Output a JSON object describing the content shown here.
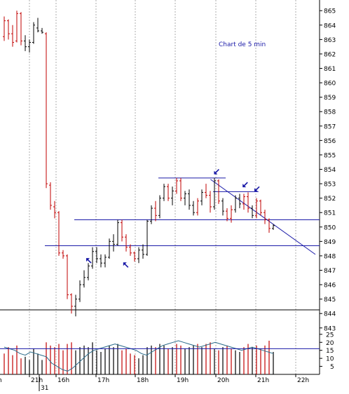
{
  "chart_data": {
    "type": "candlestick-with-volume",
    "annotation": "Chart de 5 min",
    "price_axis": {
      "min": 842,
      "max": 866,
      "ticks": [
        843,
        844,
        845,
        846,
        847,
        848,
        849,
        850,
        851,
        852,
        853,
        854,
        855,
        856,
        857,
        858,
        859,
        860,
        861,
        862,
        863,
        864,
        865
      ]
    },
    "volume_axis": {
      "min": 0,
      "max": 28,
      "ticks": [
        5,
        10,
        15,
        20,
        25
      ]
    },
    "time_labels": [
      "h",
      "21h",
      "16h",
      "17h",
      "18h",
      "19h",
      "20h",
      "21h",
      "22h"
    ],
    "date_label": "31",
    "bars": [
      {
        "t": 0.0,
        "o": 863.2,
        "h": 864.6,
        "l": 862.9,
        "c": 864.3,
        "color": "red",
        "vol": 13
      },
      {
        "t": 0.25,
        "o": 864.3,
        "h": 864.4,
        "l": 863.0,
        "c": 863.4,
        "color": "red",
        "vol": 17
      },
      {
        "t": 0.5,
        "o": 863.4,
        "h": 864.0,
        "l": 862.5,
        "c": 862.8,
        "color": "red",
        "vol": 12
      },
      {
        "t": 0.75,
        "o": 862.9,
        "h": 865.0,
        "l": 862.8,
        "c": 864.8,
        "color": "red",
        "vol": 18
      },
      {
        "t": 1.0,
        "o": 864.8,
        "h": 864.9,
        "l": 862.6,
        "c": 862.9,
        "color": "red",
        "vol": 10
      },
      {
        "t": 1.25,
        "o": 862.9,
        "h": 863.3,
        "l": 862.2,
        "c": 862.5,
        "color": "black",
        "vol": 11
      },
      {
        "t": 1.5,
        "o": 862.5,
        "h": 863.0,
        "l": 862.1,
        "c": 862.8,
        "color": "black",
        "vol": 9
      },
      {
        "t": 1.75,
        "o": 862.8,
        "h": 864.2,
        "l": 862.7,
        "c": 864.0,
        "color": "black",
        "vol": 16
      },
      {
        "t": 2.0,
        "o": 863.8,
        "h": 864.5,
        "l": 863.5,
        "c": 863.6,
        "color": "black",
        "vol": 13
      },
      {
        "t": 2.25,
        "o": 863.6,
        "h": 863.8,
        "l": 863.4,
        "c": 863.5,
        "color": "black",
        "vol": 9
      },
      {
        "t": 2.5,
        "o": 863.4,
        "h": 863.5,
        "l": 852.7,
        "c": 853.0,
        "color": "red",
        "vol": 20
      },
      {
        "t": 2.75,
        "o": 852.9,
        "h": 853.1,
        "l": 851.2,
        "c": 851.5,
        "color": "red",
        "vol": 18
      },
      {
        "t": 3.0,
        "o": 851.4,
        "h": 851.8,
        "l": 850.6,
        "c": 851.0,
        "color": "red",
        "vol": 17
      },
      {
        "t": 3.25,
        "o": 851.0,
        "h": 851.1,
        "l": 848.0,
        "c": 848.2,
        "color": "red",
        "vol": 19
      },
      {
        "t": 3.5,
        "o": 848.2,
        "h": 848.4,
        "l": 847.8,
        "c": 848.0,
        "color": "red",
        "vol": 15
      },
      {
        "t": 3.75,
        "o": 848.0,
        "h": 848.1,
        "l": 845.0,
        "c": 845.3,
        "color": "red",
        "vol": 19
      },
      {
        "t": 4.0,
        "o": 845.3,
        "h": 845.4,
        "l": 844.0,
        "c": 844.5,
        "color": "red",
        "vol": 20
      },
      {
        "t": 4.25,
        "o": 844.5,
        "h": 845.3,
        "l": 843.8,
        "c": 845.0,
        "color": "black",
        "vol": 15
      },
      {
        "t": 4.5,
        "o": 845.0,
        "h": 846.3,
        "l": 844.8,
        "c": 846.0,
        "color": "black",
        "vol": 17
      },
      {
        "t": 4.75,
        "o": 846.0,
        "h": 847.0,
        "l": 845.8,
        "c": 846.5,
        "color": "black",
        "vol": 18
      },
      {
        "t": 5.0,
        "o": 846.5,
        "h": 847.5,
        "l": 846.3,
        "c": 847.3,
        "color": "black",
        "vol": 17
      },
      {
        "t": 5.25,
        "o": 847.3,
        "h": 848.6,
        "l": 847.1,
        "c": 848.3,
        "color": "black",
        "vol": 20
      },
      {
        "t": 5.5,
        "o": 848.3,
        "h": 848.6,
        "l": 847.5,
        "c": 847.8,
        "color": "black",
        "vol": 15
      },
      {
        "t": 5.75,
        "o": 847.8,
        "h": 848.1,
        "l": 847.2,
        "c": 847.5,
        "color": "black",
        "vol": 14
      },
      {
        "t": 6.0,
        "o": 847.5,
        "h": 848.1,
        "l": 847.2,
        "c": 847.9,
        "color": "black",
        "vol": 16
      },
      {
        "t": 6.25,
        "o": 847.9,
        "h": 849.2,
        "l": 847.8,
        "c": 849.0,
        "color": "black",
        "vol": 18
      },
      {
        "t": 6.5,
        "o": 849.0,
        "h": 849.5,
        "l": 848.3,
        "c": 848.8,
        "color": "black",
        "vol": 17
      },
      {
        "t": 6.75,
        "o": 848.8,
        "h": 850.5,
        "l": 848.7,
        "c": 850.3,
        "color": "black",
        "vol": 19
      },
      {
        "t": 7.0,
        "o": 850.3,
        "h": 850.5,
        "l": 849.0,
        "c": 849.3,
        "color": "red",
        "vol": 15
      },
      {
        "t": 7.25,
        "o": 849.3,
        "h": 849.5,
        "l": 848.3,
        "c": 848.6,
        "color": "red",
        "vol": 16
      },
      {
        "t": 7.5,
        "o": 848.6,
        "h": 848.8,
        "l": 848.0,
        "c": 848.2,
        "color": "red",
        "vol": 13
      },
      {
        "t": 7.75,
        "o": 848.2,
        "h": 848.3,
        "l": 847.6,
        "c": 847.8,
        "color": "red",
        "vol": 12
      },
      {
        "t": 8.0,
        "o": 847.8,
        "h": 848.6,
        "l": 847.5,
        "c": 848.4,
        "color": "black",
        "vol": 10
      },
      {
        "t": 8.25,
        "o": 848.4,
        "h": 848.8,
        "l": 847.8,
        "c": 848.1,
        "color": "black",
        "vol": 12
      },
      {
        "t": 8.5,
        "o": 848.1,
        "h": 850.5,
        "l": 848.0,
        "c": 850.4,
        "color": "black",
        "vol": 17
      },
      {
        "t": 8.75,
        "o": 850.4,
        "h": 851.5,
        "l": 850.2,
        "c": 851.3,
        "color": "black",
        "vol": 18
      },
      {
        "t": 9.0,
        "o": 851.3,
        "h": 851.8,
        "l": 850.4,
        "c": 850.8,
        "color": "red",
        "vol": 17
      },
      {
        "t": 9.25,
        "o": 850.8,
        "h": 852.2,
        "l": 850.6,
        "c": 852.0,
        "color": "black",
        "vol": 19
      },
      {
        "t": 9.5,
        "o": 852.0,
        "h": 853.0,
        "l": 851.8,
        "c": 852.8,
        "color": "black",
        "vol": 18
      },
      {
        "t": 9.75,
        "o": 852.8,
        "h": 853.0,
        "l": 851.8,
        "c": 852.0,
        "color": "red",
        "vol": 16
      },
      {
        "t": 10.0,
        "o": 852.0,
        "h": 852.8,
        "l": 851.5,
        "c": 852.5,
        "color": "black",
        "vol": 17
      },
      {
        "t": 10.25,
        "o": 852.5,
        "h": 853.4,
        "l": 852.3,
        "c": 853.2,
        "color": "red",
        "vol": 19
      },
      {
        "t": 10.5,
        "o": 853.2,
        "h": 853.4,
        "l": 851.8,
        "c": 852.0,
        "color": "red",
        "vol": 18
      },
      {
        "t": 10.75,
        "o": 852.0,
        "h": 852.5,
        "l": 851.5,
        "c": 852.3,
        "color": "black",
        "vol": 16
      },
      {
        "t": 11.0,
        "o": 852.3,
        "h": 852.6,
        "l": 851.2,
        "c": 851.5,
        "color": "black",
        "vol": 17
      },
      {
        "t": 11.25,
        "o": 851.5,
        "h": 851.8,
        "l": 850.8,
        "c": 851.0,
        "color": "black",
        "vol": 18
      },
      {
        "t": 11.5,
        "o": 851.0,
        "h": 852.0,
        "l": 850.8,
        "c": 851.8,
        "color": "red",
        "vol": 19
      },
      {
        "t": 11.75,
        "o": 851.8,
        "h": 852.6,
        "l": 851.5,
        "c": 852.4,
        "color": "black",
        "vol": 17
      },
      {
        "t": 12.0,
        "o": 852.4,
        "h": 853.0,
        "l": 852.0,
        "c": 852.2,
        "color": "red",
        "vol": 19
      },
      {
        "t": 12.25,
        "o": 852.2,
        "h": 852.5,
        "l": 851.0,
        "c": 851.4,
        "color": "red",
        "vol": 20
      },
      {
        "t": 12.5,
        "o": 851.4,
        "h": 853.4,
        "l": 851.2,
        "c": 853.2,
        "color": "black",
        "vol": 16
      },
      {
        "t": 12.75,
        "o": 853.2,
        "h": 853.3,
        "l": 851.6,
        "c": 851.8,
        "color": "red",
        "vol": 15
      },
      {
        "t": 13.0,
        "o": 851.8,
        "h": 852.0,
        "l": 850.8,
        "c": 851.1,
        "color": "black",
        "vol": 17
      },
      {
        "t": 13.25,
        "o": 851.1,
        "h": 851.3,
        "l": 850.4,
        "c": 850.6,
        "color": "red",
        "vol": 18
      },
      {
        "t": 13.5,
        "o": 850.6,
        "h": 851.5,
        "l": 850.3,
        "c": 851.2,
        "color": "red",
        "vol": 16
      },
      {
        "t": 13.75,
        "o": 851.2,
        "h": 852.2,
        "l": 851.0,
        "c": 852.0,
        "color": "black",
        "vol": 15
      },
      {
        "t": 14.0,
        "o": 852.0,
        "h": 852.3,
        "l": 851.3,
        "c": 851.6,
        "color": "black",
        "vol": 14
      },
      {
        "t": 14.25,
        "o": 851.6,
        "h": 852.3,
        "l": 851.2,
        "c": 852.1,
        "color": "red",
        "vol": 17
      },
      {
        "t": 14.5,
        "o": 852.1,
        "h": 852.4,
        "l": 851.0,
        "c": 851.3,
        "color": "red",
        "vol": 19
      },
      {
        "t": 14.75,
        "o": 851.3,
        "h": 851.5,
        "l": 850.6,
        "c": 850.8,
        "color": "black",
        "vol": 17
      },
      {
        "t": 15.0,
        "o": 850.8,
        "h": 852.0,
        "l": 850.6,
        "c": 851.8,
        "color": "red",
        "vol": 18
      },
      {
        "t": 15.25,
        "o": 851.8,
        "h": 851.9,
        "l": 850.8,
        "c": 851.0,
        "color": "red",
        "vol": 16
      },
      {
        "t": 15.5,
        "o": 851.0,
        "h": 851.2,
        "l": 850.2,
        "c": 850.5,
        "color": "red",
        "vol": 18
      },
      {
        "t": 15.75,
        "o": 850.5,
        "h": 850.6,
        "l": 849.6,
        "c": 849.9,
        "color": "red",
        "vol": 21
      },
      {
        "t": 16.0,
        "o": 849.9,
        "h": 850.2,
        "l": 849.8,
        "c": 850.1,
        "color": "black",
        "vol": 14
      }
    ],
    "ma_points": [
      17,
      16,
      15,
      13,
      12,
      14,
      13,
      12,
      11,
      7,
      5,
      3,
      2,
      4,
      7,
      10,
      13,
      15,
      16,
      17,
      18,
      19,
      18,
      17,
      16,
      15,
      13,
      12,
      14,
      16,
      18,
      19,
      20,
      21,
      20,
      19,
      18,
      17,
      18,
      19,
      20,
      19,
      18,
      17,
      16,
      15,
      16,
      17,
      16,
      15,
      14,
      13
    ],
    "vol_reference_level": 16,
    "horizontal_levels": [
      {
        "name": "top-resistance",
        "price": 853.4,
        "x0": 9.25,
        "x1": 13.25
      },
      {
        "name": "resistance-852-5",
        "price": 852.45,
        "x0": 12.5,
        "x1": 15.2
      },
      {
        "name": "resistance-850-5",
        "price": 850.5,
        "x0": 4.25,
        "x1": 22.0
      },
      {
        "name": "support-848-7",
        "price": 848.7,
        "x0": 2.5,
        "x1": 22.0
      }
    ],
    "trendline": {
      "x0": 12.35,
      "p0": 853.3,
      "x1": 21.8,
      "p1": 848.1
    },
    "arrows": [
      {
        "t": 5.0,
        "p": 847.7,
        "dir": "up-left"
      },
      {
        "t": 7.2,
        "p": 847.4,
        "dir": "up-left"
      },
      {
        "t": 12.6,
        "p": 853.8,
        "dir": "down-left"
      },
      {
        "t": 14.3,
        "p": 852.9,
        "dir": "down-left"
      },
      {
        "t": 15.0,
        "p": 852.6,
        "dir": "down-left"
      }
    ]
  }
}
